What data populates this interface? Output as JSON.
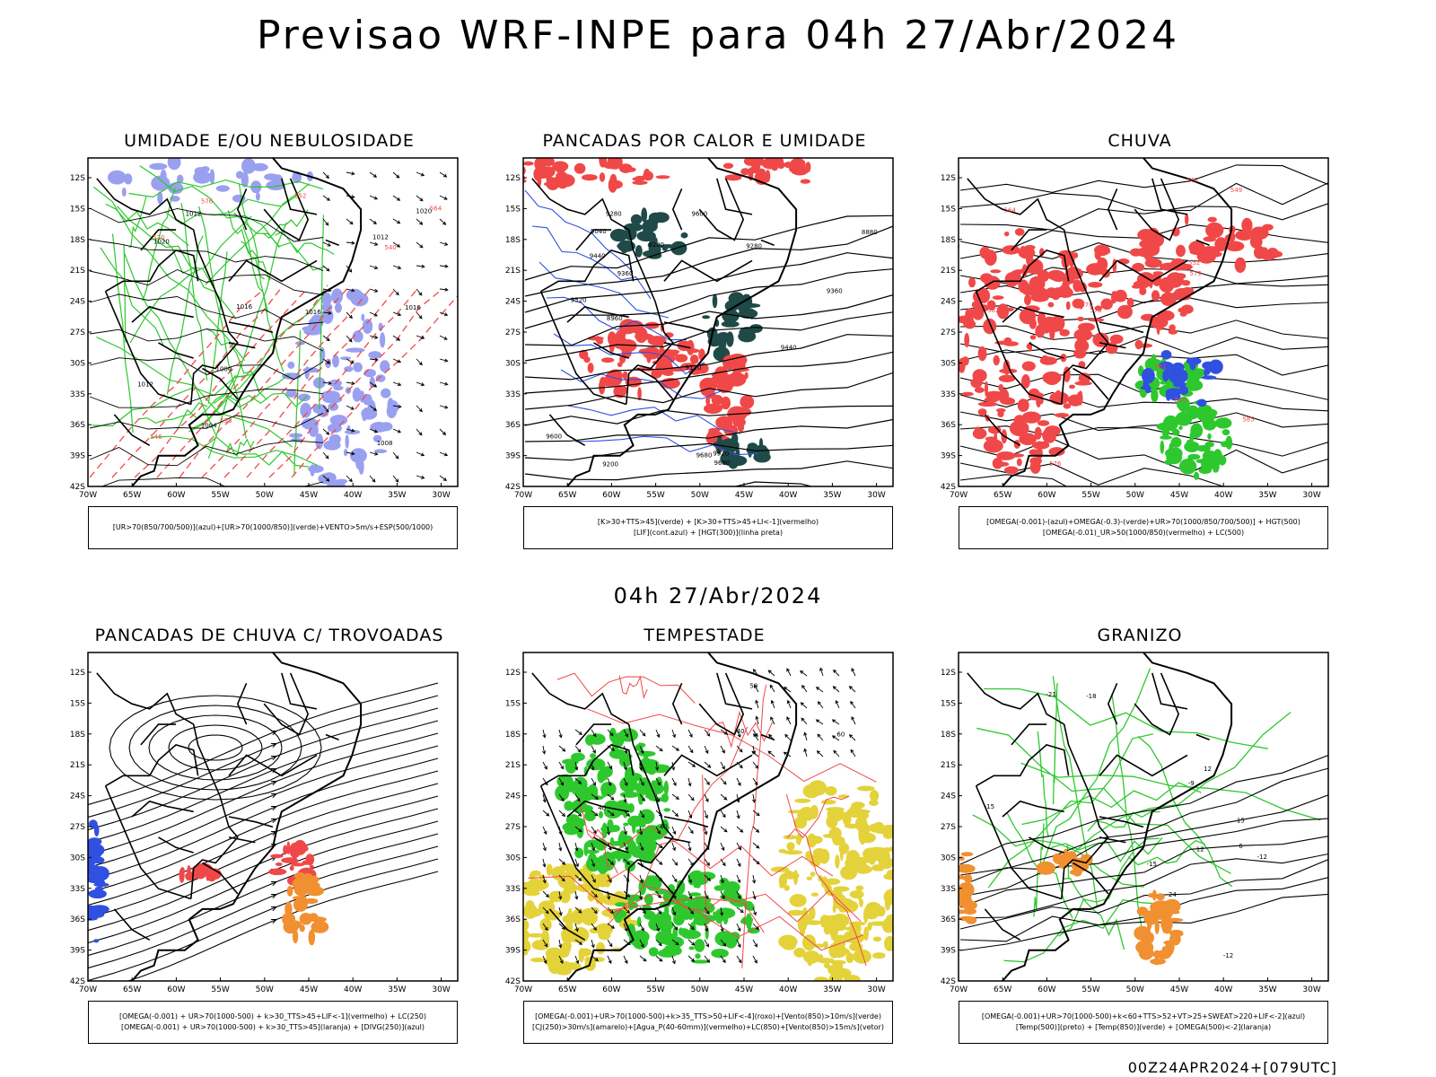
{
  "title": "Previsao WRF-INPE  para 04h 27/Abr/2024",
  "mid_date": "04h 27/Abr/2024",
  "footer": "00Z24APR2024+[079UTC]",
  "lat_ticks": [
    "12S",
    "15S",
    "18S",
    "21S",
    "24S",
    "27S",
    "30S",
    "33S",
    "36S",
    "39S",
    "42S"
  ],
  "lon_ticks": [
    "70W",
    "65W",
    "60W",
    "55W",
    "50W",
    "45W",
    "40W",
    "35W",
    "30W"
  ],
  "panels": [
    {
      "title": "UMIDADE E/OU NEBULOSIDADE",
      "legend": [
        "[UR>70(850/700/500)](azul)+[UR>70(1000/850)](verde)+VENTO>5m/s+ESP(500/1000)"
      ],
      "contour_labels": [
        "1012",
        "1016",
        "1016",
        "1008",
        "1012",
        "1020",
        "1016",
        "1004",
        "1000",
        "1020",
        "1012",
        "576",
        "570",
        "564",
        "558",
        "552",
        "546",
        "540"
      ]
    },
    {
      "title": "PANCADAS POR CALOR E UMIDADE",
      "legend": [
        "[K>30+TTS>45](verde) + [K>30+TTS>45+LI<-1](vermelho)",
        "[LIF](cont.azul) + [HGT(300)](linha preta)"
      ],
      "contour_labels": [
        "9680",
        "9680",
        "9600",
        "9520",
        "9440",
        "9360",
        "9280",
        "9200",
        "9120",
        "9040",
        "8960",
        "8880",
        "9600",
        "9520",
        "9440",
        "9360",
        "9280",
        "9200"
      ]
    },
    {
      "title": "CHUVA",
      "legend": [
        "[OMEGA(-0.001)-(azul)+OMEGA(-0.3)-(verde)+UR>70(1000/850/700/500)] + HGT(500)",
        "[OMEGA(-0.01)_UR>50(1000/850)(vermelho) + LC(500)"
      ],
      "contour_labels": [
        "585",
        "582",
        "579",
        "576",
        "573",
        "570",
        "567",
        "564",
        "561",
        "558",
        "555",
        "552",
        "549"
      ]
    },
    {
      "title": "PANCADAS DE CHUVA C/ TROVOADAS",
      "legend": [
        "[OMEGA(-0.001) + UR>70(1000-500) + k>30_TTS>45+LIF<-1](vermelho) + LC(250)",
        "[OMEGA(-0.001) + UR>70(1000-500) + k>30_TTS>45](laranja) + [DIVG(250)](azul)"
      ],
      "contour_labels": []
    },
    {
      "title": "TEMPESTADE",
      "legend": [
        "[OMEGA(-0.001)+UR>70(1000-500)+k>35_TTS>50+LIF<-4](roxo)+[Vento(850)>10m/s](verde)",
        "[CJ(250)>30m/s](amarelo)+[Agua_P(40-60mm)](vermelho)+LC(850)+[Vento(850)>15m/s](vetor)"
      ],
      "contour_labels": [
        "40",
        "40",
        "60",
        "50",
        "40"
      ]
    },
    {
      "title": "GRANIZO",
      "legend": [
        "[OMEGA(-0.001)+UR>70(1000-500)+k<60+TTS>52+VT>25+SWEAT>220+LIF<-2](azul)",
        "[Temp(500)](preto) + [Temp(850)](verde) + [OMEGA(500)<-2](laranja)"
      ],
      "contour_labels": [
        "-9",
        "-12",
        "-15",
        "-18",
        "-21",
        "-24",
        "12",
        "15",
        "-12",
        "-15",
        "6",
        "12"
      ]
    }
  ],
  "colors": {
    "red": "#f04848",
    "green": "#2ec82e",
    "blue": "#3050e0",
    "light_blue": "#9aa0f0",
    "dark_teal": "#1f4a48",
    "yellow": "#e4d23a",
    "orange": "#f09030",
    "purple": "#8a2be2",
    "black": "#000000"
  }
}
